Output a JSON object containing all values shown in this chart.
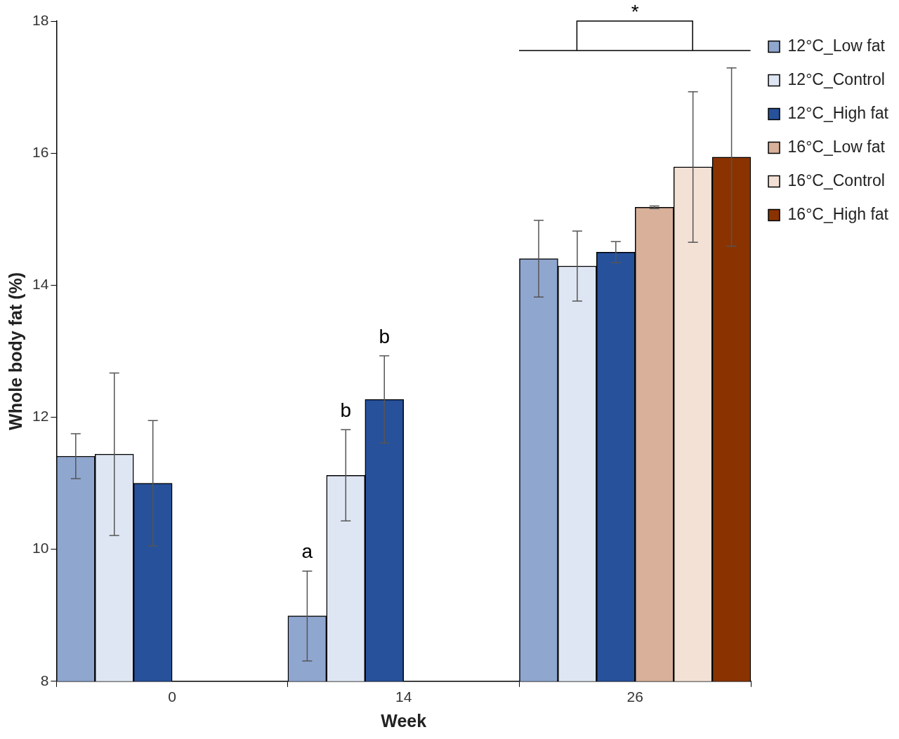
{
  "chart_data": {
    "type": "bar",
    "xlabel": "Week",
    "ylabel": "Whole body fat (%)",
    "categories": [
      "0",
      "14",
      "26"
    ],
    "ylim": [
      8,
      18
    ],
    "yticks": [
      8,
      10,
      12,
      14,
      16,
      18
    ],
    "legend": "top right",
    "series": [
      {
        "name": "12°C_Low fat",
        "color": "#8fa6cf",
        "values": [
          11.41,
          8.99,
          14.4
        ],
        "errors": [
          0.34,
          0.68,
          0.58
        ]
      },
      {
        "name": "12°C_Control",
        "color": "#dfe6f3",
        "values": [
          11.44,
          11.12,
          14.29
        ],
        "errors": [
          1.23,
          0.69,
          0.53
        ]
      },
      {
        "name": "12°C_High fat",
        "color": "#27519b",
        "values": [
          11.0,
          12.27,
          14.5
        ],
        "errors": [
          0.95,
          0.66,
          0.16
        ]
      },
      {
        "name": "16°C_Low fat",
        "color": "#d9b09a",
        "values": [
          null,
          null,
          15.18
        ],
        "errors": [
          null,
          null,
          0.02
        ]
      },
      {
        "name": "16°C_Control",
        "color": "#f3e1d5",
        "values": [
          null,
          null,
          15.79
        ],
        "errors": [
          null,
          null,
          1.14
        ]
      },
      {
        "name": "16°C_High fat",
        "color": "#8a3300",
        "values": [
          null,
          null,
          15.94
        ],
        "errors": [
          null,
          null,
          1.35
        ]
      }
    ],
    "annotations": [
      "a",
      "b",
      "b",
      "*"
    ]
  }
}
